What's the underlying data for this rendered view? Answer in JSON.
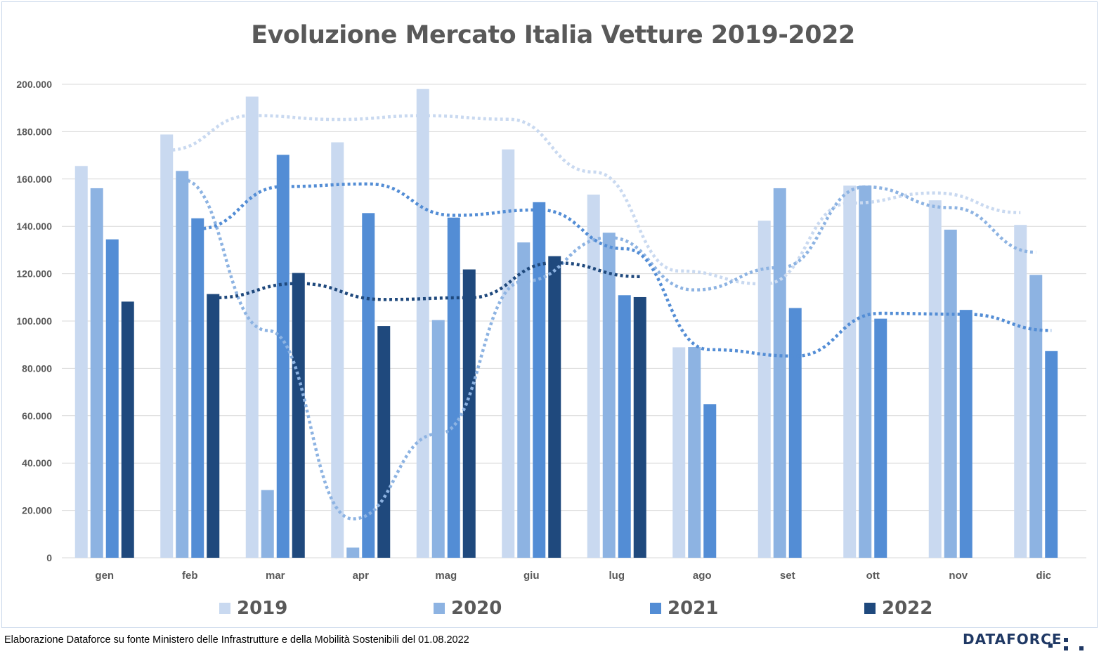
{
  "colors": {
    "s2019": "#c9d9f0",
    "s2020": "#8db3e2",
    "s2021": "#538dd5",
    "s2022": "#1f497d",
    "grid": "#d9d9d9",
    "axis_text": "#595959"
  },
  "chart_data": {
    "type": "bar",
    "title": "Evoluzione Mercato Italia Vetture 2019-2022",
    "categories": [
      "gen",
      "feb",
      "mar",
      "apr",
      "mag",
      "giu",
      "lug",
      "ago",
      "set",
      "ott",
      "nov",
      "dic"
    ],
    "ylim": [
      0,
      200000
    ],
    "yticks": [
      "0",
      "20.000",
      "40.000",
      "60.000",
      "80.000",
      "100.000",
      "120.000",
      "140.000",
      "160.000",
      "180.000",
      "200.000"
    ],
    "grid": true,
    "legend_position": "bottom",
    "series": [
      {
        "name": "2019",
        "values": [
          165500,
          178800,
          194800,
          175500,
          198000,
          172500,
          153400,
          88900,
          142400,
          157200,
          151000,
          140600
        ]
      },
      {
        "name": "2020",
        "values": [
          156100,
          163400,
          28600,
          4300,
          100400,
          133200,
          137300,
          89000,
          156100,
          157200,
          138600,
          119500
        ]
      },
      {
        "name": "2021",
        "values": [
          134500,
          143400,
          170200,
          145600,
          143700,
          150200,
          110900,
          64900,
          105500,
          101000,
          104700,
          87300
        ]
      },
      {
        "name": "2022",
        "values": [
          108200,
          111400,
          120300,
          97900,
          121800,
          127400,
          110100,
          null,
          null,
          null,
          null,
          null
        ]
      }
    ],
    "trendlines": {
      "type": "moving-average-2",
      "style": "dotted"
    }
  },
  "footer": {
    "note": "Elaborazione Dataforce su fonte Ministero delle Infrastrutture e della Mobilità Sostenibili del 01.08.2022",
    "brand": "DATAFORCE"
  }
}
